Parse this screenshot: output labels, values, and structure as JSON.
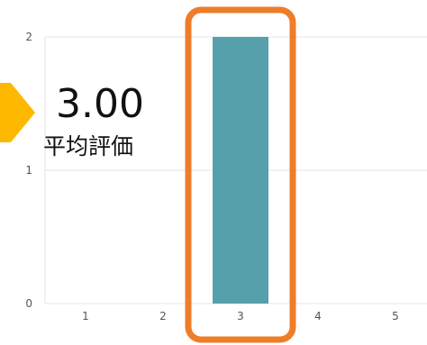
{
  "summary": {
    "average_value": "3.00",
    "average_label": "平均評価"
  },
  "chart_data": {
    "type": "bar",
    "categories": [
      "1",
      "2",
      "3",
      "4",
      "5"
    ],
    "values": [
      0,
      0,
      2,
      0,
      0
    ],
    "title": "",
    "xlabel": "",
    "ylabel": "",
    "ylim": [
      0,
      2
    ],
    "yticks": [
      0,
      1,
      2
    ],
    "grid": true,
    "legend": "none",
    "highlighted_category": "3"
  },
  "colors": {
    "bar": "#55a0ab",
    "highlight_outline": "#ee7d2a",
    "arrow": "#ffb800"
  }
}
